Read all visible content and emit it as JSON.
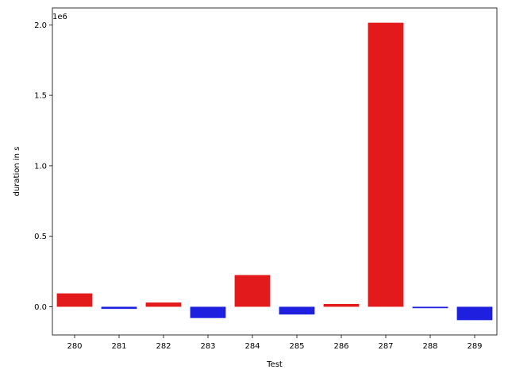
{
  "chart_data": {
    "type": "bar",
    "xlabel": "Test",
    "ylabel": "duration in s",
    "offset_text": "1e6",
    "categories": [
      "280",
      "281",
      "282",
      "283",
      "284",
      "285",
      "286",
      "287",
      "288",
      "289"
    ],
    "values": [
      95000,
      -15000,
      30000,
      -80000,
      225000,
      -55000,
      20000,
      2015000,
      -10000,
      -95000
    ],
    "colors": [
      "#e31a1c",
      "#1f1fe0",
      "#e31a1c",
      "#1f1fe0",
      "#e31a1c",
      "#1f1fe0",
      "#e31a1c",
      "#e31a1c",
      "#1f1fe0",
      "#1f1fe0"
    ],
    "ylim": [
      -200000,
      2120000
    ],
    "yticks": [
      0,
      500000,
      1000000,
      1500000,
      2000000
    ],
    "ytick_labels": [
      "0.0",
      "0.5",
      "1.0",
      "1.5",
      "2.0"
    ],
    "grid": false,
    "legend": "none"
  }
}
